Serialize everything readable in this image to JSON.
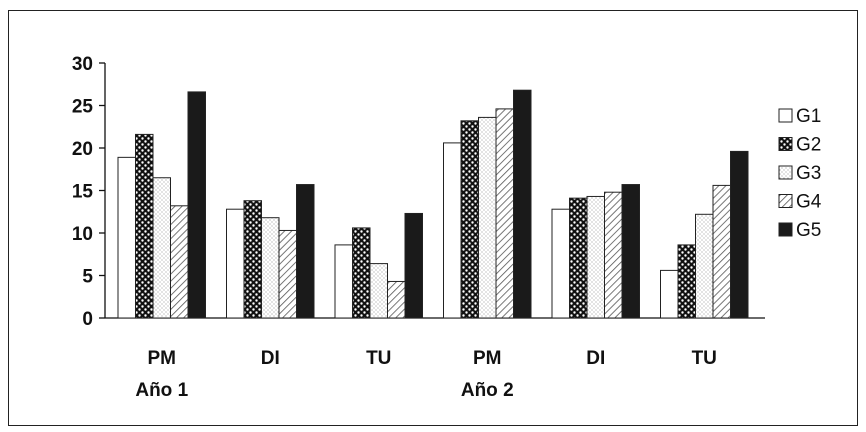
{
  "chart_data": {
    "type": "bar",
    "categories": [
      "PM",
      "DI",
      "TU",
      "PM",
      "DI",
      "TU"
    ],
    "groups": [
      "Año 1",
      "Año 2"
    ],
    "ylim": [
      0,
      30
    ],
    "yticks": [
      0,
      5,
      10,
      15,
      20,
      25,
      30
    ],
    "legend_position": "right",
    "grid": false,
    "series": [
      {
        "name": "G1",
        "values": [
          18.9,
          12.8,
          8.6,
          20.6,
          12.8,
          5.6
        ],
        "pattern": "white"
      },
      {
        "name": "G2",
        "values": [
          21.6,
          13.8,
          10.6,
          23.2,
          14.1,
          8.6
        ],
        "pattern": "dark-dotted"
      },
      {
        "name": "G3",
        "values": [
          16.5,
          11.8,
          6.4,
          23.6,
          14.3,
          12.2
        ],
        "pattern": "light-dotted"
      },
      {
        "name": "G4",
        "values": [
          13.2,
          10.3,
          4.3,
          24.6,
          14.8,
          15.6
        ],
        "pattern": "hatched"
      },
      {
        "name": "G5",
        "values": [
          26.6,
          15.7,
          12.3,
          26.8,
          15.7,
          19.6
        ],
        "pattern": "solid-black"
      }
    ]
  }
}
